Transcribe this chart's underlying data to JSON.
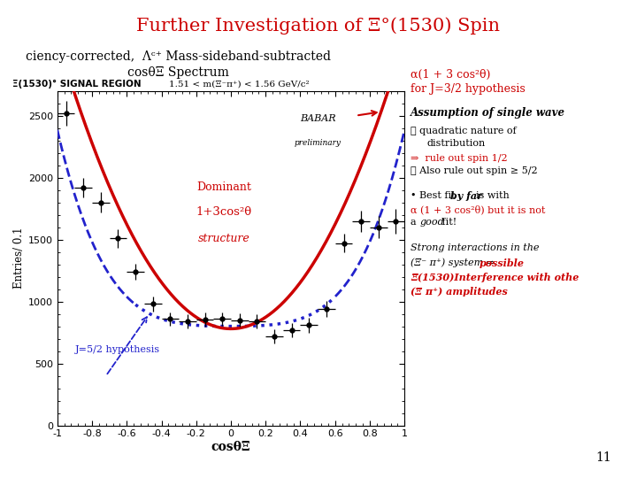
{
  "title": "Further Investigation of Ξ°(1530) Spin",
  "subtitle1": "ciency-corrected,  Λᶜ⁺ Mass-sideband-subtracted",
  "subtitle2": "cosθΞ Spectrum",
  "signal_label": "Ξ(1530)° SIGNAL REGION",
  "signal_range": "1.51 < m(Ξ⁻π⁺) < 1.56 GeV/c²",
  "xlabel": "cosθΞ",
  "ylabel": "Entries/ 0.1",
  "xlim": [
    -1,
    1
  ],
  "ylim": [
    0,
    2700
  ],
  "yticks": [
    0,
    500,
    1000,
    1500,
    2000,
    2500
  ],
  "xticks": [
    -1,
    -0.8,
    -0.6,
    -0.4,
    -0.2,
    0,
    0.2,
    0.4,
    0.6,
    0.8,
    1
  ],
  "data_x": [
    -0.95,
    -0.85,
    -0.75,
    -0.65,
    -0.55,
    -0.45,
    -0.35,
    -0.25,
    -0.15,
    -0.05,
    0.05,
    0.15,
    0.25,
    0.35,
    0.45,
    0.55,
    0.65,
    0.75,
    0.85,
    0.95
  ],
  "data_y": [
    2520,
    1920,
    1800,
    1510,
    1240,
    980,
    860,
    840,
    855,
    860,
    850,
    840,
    720,
    770,
    810,
    940,
    1470,
    1650,
    1600,
    1650
  ],
  "data_ex": [
    0.05,
    0.05,
    0.05,
    0.05,
    0.05,
    0.05,
    0.05,
    0.05,
    0.05,
    0.05,
    0.05,
    0.05,
    0.05,
    0.05,
    0.05,
    0.05,
    0.05,
    0.05,
    0.05,
    0.05
  ],
  "data_ey": [
    100,
    80,
    80,
    75,
    65,
    60,
    55,
    55,
    55,
    55,
    55,
    55,
    55,
    55,
    60,
    65,
    75,
    85,
    90,
    100
  ],
  "red_scale": 780,
  "blue_scale": 800,
  "bg_color": "#ffffff",
  "red_color": "#cc0000",
  "blue_color": "#2222cc",
  "data_color": "#000000",
  "babar_text": "BABAR\npreliminary",
  "dominant_line1": "Dominant",
  "dominant_line2": "1+3cos²θ",
  "dominant_line3": "structure",
  "j52_text": "J=5/2 hypothesis",
  "alpha_line1": "α(1 + 3 cos²θ)",
  "alpha_line2": "for J=3/2 hypothesis",
  "page_num": "11"
}
